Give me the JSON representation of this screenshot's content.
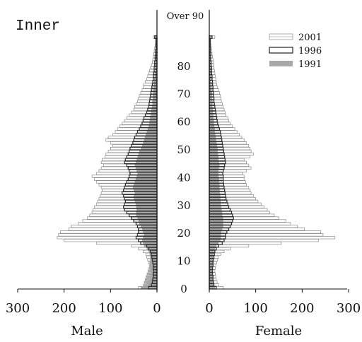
{
  "chart_data": {
    "type": "bar",
    "subtype": "population-pyramid",
    "panel_label": "Inner",
    "left_label": "Male",
    "right_label": "Female",
    "top_age_label": "Over 90",
    "age_ticks": [
      "0",
      "10",
      "20",
      "30",
      "40",
      "50",
      "60",
      "70",
      "80"
    ],
    "age_tick_values": [
      0,
      10,
      20,
      30,
      40,
      50,
      60,
      70,
      80
    ],
    "x_ticks_male": [
      "300",
      "200",
      "100",
      "0"
    ],
    "x_ticks_female": [
      "0",
      "100",
      "200",
      "300"
    ],
    "xlim": [
      0,
      300
    ],
    "age_range": [
      0,
      90
    ],
    "legend_position": "top-right",
    "colors": {
      "1991": "#a8a8a8",
      "1996": "#333333",
      "2001": "#999999"
    },
    "series": [
      {
        "name": "2001",
        "male": [
          40,
          22,
          18,
          16,
          14,
          12,
          13,
          14,
          15,
          18,
          20,
          22,
          24,
          30,
          40,
          55,
          130,
          200,
          215,
          212,
          208,
          190,
          185,
          170,
          160,
          150,
          145,
          140,
          138,
          135,
          130,
          128,
          125,
          122,
          120,
          118,
          120,
          125,
          130,
          135,
          140,
          130,
          125,
          120,
          115,
          120,
          118,
          112,
          110,
          105,
          100,
          95,
          100,
          110,
          105,
          95,
          90,
          85,
          80,
          75,
          70,
          65,
          60,
          55,
          50,
          48,
          45,
          42,
          40,
          38,
          35,
          32,
          30,
          28,
          25,
          22,
          20,
          18,
          16,
          14,
          12,
          10,
          9,
          8,
          7,
          6,
          5,
          4,
          3,
          3,
          8
        ],
        "female": [
          30,
          20,
          17,
          15,
          14,
          13,
          12,
          13,
          14,
          16,
          18,
          20,
          25,
          32,
          45,
          85,
          155,
          235,
          270,
          245,
          240,
          205,
          190,
          175,
          165,
          150,
          140,
          130,
          125,
          118,
          112,
          105,
          100,
          95,
          90,
          88,
          85,
          80,
          78,
          75,
          75,
          72,
          80,
          90,
          85,
          80,
          75,
          88,
          95,
          90,
          88,
          85,
          80,
          75,
          70,
          65,
          60,
          55,
          50,
          45,
          42,
          40,
          36,
          34,
          32,
          30,
          28,
          26,
          25,
          24,
          22,
          20,
          18,
          16,
          15,
          14,
          13,
          12,
          11,
          10,
          10,
          9,
          8,
          7,
          6,
          5,
          5,
          4,
          3,
          3,
          12
        ]
      },
      {
        "name": "1996",
        "male": [
          18,
          12,
          10,
          9,
          8,
          8,
          7,
          8,
          8,
          9,
          10,
          11,
          12,
          14,
          18,
          22,
          35,
          40,
          45,
          42,
          40,
          40,
          42,
          45,
          50,
          55,
          60,
          65,
          70,
          72,
          70,
          68,
          70,
          72,
          75,
          72,
          70,
          68,
          65,
          62,
          60,
          58,
          60,
          62,
          65,
          70,
          68,
          65,
          62,
          60,
          58,
          55,
          52,
          50,
          48,
          45,
          42,
          38,
          35,
          32,
          30,
          28,
          25,
          22,
          20,
          18,
          17,
          16,
          15,
          14,
          13,
          12,
          11,
          10,
          9,
          8,
          8,
          7,
          6,
          6,
          5,
          5,
          4,
          4,
          3,
          3,
          2,
          2,
          2,
          2,
          5
        ],
        "female": [
          15,
          10,
          9,
          8,
          8,
          7,
          7,
          7,
          8,
          8,
          9,
          10,
          11,
          12,
          15,
          20,
          28,
          32,
          35,
          35,
          38,
          42,
          45,
          48,
          50,
          52,
          50,
          48,
          45,
          42,
          40,
          38,
          36,
          35,
          34,
          33,
          32,
          31,
          30,
          30,
          30,
          29,
          30,
          32,
          33,
          35,
          34,
          33,
          32,
          31,
          30,
          29,
          28,
          27,
          26,
          25,
          24,
          22,
          20,
          18,
          17,
          16,
          15,
          14,
          13,
          12,
          11,
          10,
          10,
          9,
          9,
          8,
          8,
          7,
          7,
          6,
          6,
          5,
          5,
          5,
          4,
          4,
          3,
          3,
          3,
          2,
          2,
          2,
          2,
          2,
          6
        ]
      },
      {
        "name": "1991",
        "male": [
          35,
          30,
          28,
          26,
          24,
          22,
          20,
          18,
          17,
          16,
          15,
          15,
          16,
          18,
          22,
          28,
          30,
          32,
          30,
          28,
          30,
          32,
          35,
          38,
          40,
          42,
          45,
          45,
          44,
          45,
          46,
          48,
          50,
          50,
          48,
          50,
          52,
          50,
          48,
          46,
          44,
          42,
          44,
          46,
          48,
          46,
          44,
          42,
          40,
          38,
          35,
          32,
          30,
          28,
          26,
          24,
          22,
          20,
          18,
          17,
          16,
          15,
          14,
          13,
          12,
          11,
          10,
          10,
          9,
          9,
          8,
          8,
          7,
          7,
          6,
          6,
          5,
          5,
          4,
          4,
          4,
          3,
          3,
          3,
          2,
          2,
          2,
          2,
          2,
          2,
          4
        ],
        "female": [
          12,
          10,
          9,
          8,
          8,
          7,
          7,
          7,
          7,
          8,
          8,
          8,
          9,
          10,
          12,
          15,
          20,
          24,
          25,
          25,
          26,
          28,
          30,
          30,
          30,
          30,
          28,
          28,
          27,
          26,
          25,
          25,
          24,
          24,
          23,
          23,
          22,
          22,
          21,
          21,
          20,
          20,
          20,
          21,
          22,
          21,
          20,
          20,
          19,
          18,
          18,
          17,
          16,
          15,
          14,
          13,
          12,
          12,
          11,
          10,
          10,
          9,
          9,
          8,
          8,
          7,
          7,
          7,
          6,
          6,
          6,
          5,
          5,
          5,
          4,
          4,
          4,
          4,
          3,
          3,
          3,
          3,
          3,
          2,
          2,
          2,
          2,
          2,
          2,
          2,
          4
        ]
      }
    ]
  }
}
